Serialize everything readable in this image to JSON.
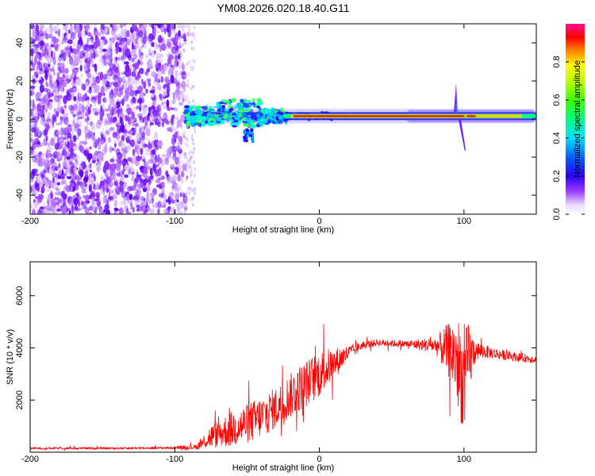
{
  "title": "YM08.2026.020.18.40.G11",
  "chart_data": [
    {
      "type": "heatmap",
      "name": "spectrogram",
      "xlabel": "Height of straight line (km)",
      "ylabel": "Frequency (Hz)",
      "xlim": [
        -200,
        150
      ],
      "ylim": [
        -50,
        50
      ],
      "xticks": [
        -200,
        -100,
        0,
        100
      ],
      "yticks": [
        -40,
        -20,
        0,
        20,
        40
      ],
      "colorbar": {
        "label": "Normalized spectral amplitude",
        "range": [
          0,
          1
        ],
        "ticks": [
          0.0,
          0.2,
          0.4,
          0.6,
          0.8
        ]
      },
      "features": {
        "noise_region_x": [
          -200,
          -92
        ],
        "signal_onset_km": -93,
        "carrier_freq_hz": 1.5,
        "spike_km": 94
      }
    },
    {
      "type": "line",
      "name": "snr",
      "xlabel": "Height of straight line (km)",
      "ylabel": "SNR (10 * v/v)",
      "xlim": [
        -200,
        150
      ],
      "ylim": [
        0,
        7300
      ],
      "xticks": [
        -200,
        -100,
        0,
        100
      ],
      "yticks": [
        2000,
        4000,
        6000
      ],
      "color": "#ff0000",
      "series": [
        {
          "name": "SNR",
          "x": [
            -200,
            -150,
            -100,
            -85,
            -75,
            -60,
            -45,
            -30,
            -15,
            0,
            10,
            20,
            30,
            40,
            60,
            80,
            90,
            95,
            100,
            103,
            108,
            115,
            130,
            150
          ],
          "mean": [
            150,
            150,
            170,
            200,
            600,
            900,
            1200,
            1700,
            2400,
            3000,
            3400,
            3800,
            4100,
            4200,
            4150,
            4100,
            3900,
            3600,
            2600,
            3500,
            3900,
            3850,
            3700,
            3550
          ],
          "amp": [
            40,
            40,
            50,
            100,
            450,
            700,
            800,
            800,
            900,
            900,
            600,
            300,
            150,
            130,
            140,
            300,
            1100,
            1700,
            2000,
            1500,
            400,
            250,
            180,
            150
          ]
        }
      ]
    }
  ]
}
